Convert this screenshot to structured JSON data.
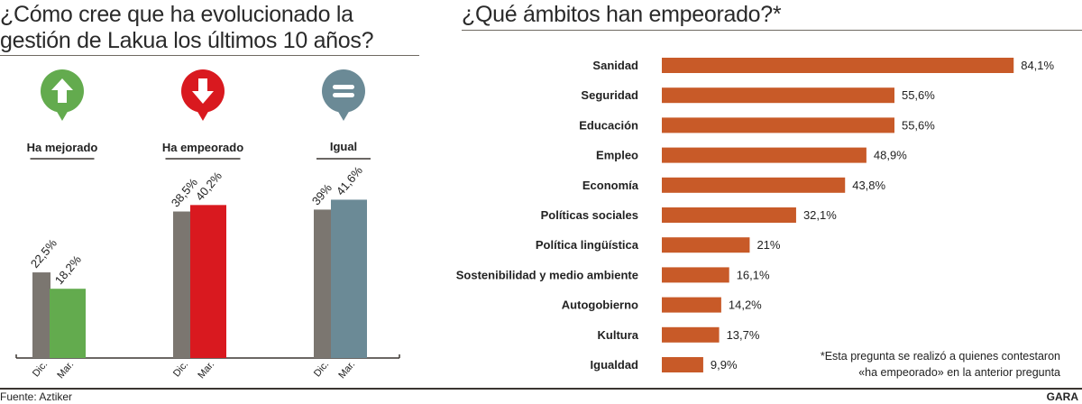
{
  "left_title": "¿Cómo cree que ha evolucionado la gestión de Lakua los últimos 10 años?",
  "right_title": "¿Qué ámbitos han empeorado?*",
  "footnote_line1": "*Esta pregunta se realizó a quienes contestaron",
  "footnote_line2": "«ha empeorado» en la anterior pregunta",
  "source": "Fuente: Aztiker",
  "brand": "GARA",
  "chart_data": [
    {
      "type": "bar",
      "orientation": "vertical",
      "categories": [
        "Ha mejorado",
        "Ha empeorado",
        "Igual"
      ],
      "icons": [
        "arrow-up-icon",
        "arrow-down-icon",
        "equals-icon"
      ],
      "series": [
        {
          "name": "Dic.",
          "values": [
            22.5,
            38.5,
            39
          ],
          "labels": [
            "22,5%",
            "38,5%",
            "39%"
          ],
          "color": "#7b7670"
        },
        {
          "name": "Mar.",
          "values": [
            18.2,
            40.2,
            41.6
          ],
          "labels": [
            "18,2%",
            "40,2%",
            "41,6%"
          ],
          "colors": [
            "#63ab4e",
            "#d9191f",
            "#6b8a96"
          ]
        }
      ]
    },
    {
      "type": "bar",
      "orientation": "horizontal",
      "color": "#c85a28",
      "categories": [
        "Sanidad",
        "Seguridad",
        "Educación",
        "Empleo",
        "Economía",
        "Políticas sociales",
        "Política lingüística",
        "Sostenibilidad y medio ambiente",
        "Autogobierno",
        "Kultura",
        "Igualdad"
      ],
      "values": [
        84.1,
        55.6,
        55.6,
        48.9,
        43.8,
        32.1,
        21,
        16.1,
        14.2,
        13.7,
        9.9
      ],
      "labels": [
        "84,1%",
        "55,6%",
        "55,6%",
        "48,9%",
        "43,8%",
        "32,1%",
        "21%",
        "16,1%",
        "14,2%",
        "13,7%",
        "9,9%"
      ]
    }
  ]
}
